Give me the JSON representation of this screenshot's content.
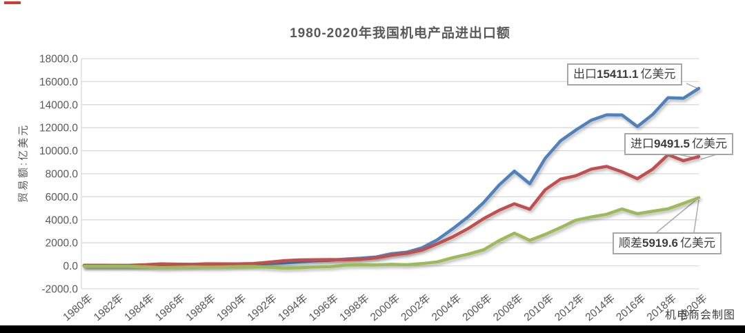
{
  "page": {
    "footer_credit": "机电商会制图"
  },
  "chart_data": {
    "type": "line",
    "title": "1980-2020年我国机电产品进出口额",
    "xlabel": "",
    "ylabel": "贸易额:亿美元",
    "ylim": [
      -2000,
      18000
    ],
    "ytick_step": 2000,
    "grid": true,
    "legend_position": "none",
    "yticks": [
      18000,
      16000,
      14000,
      12000,
      10000,
      8000,
      6000,
      4000,
      2000,
      0,
      -2000
    ],
    "ytick_labels": [
      "18000.0",
      "16000.0",
      "14000.0",
      "12000.0",
      "10000.0",
      "8000.0",
      "6000.0",
      "4000.0",
      "2000.0",
      "0.0",
      "-2000.0"
    ],
    "years": [
      1980,
      1981,
      1982,
      1983,
      1984,
      1985,
      1986,
      1987,
      1988,
      1989,
      1990,
      1991,
      1992,
      1993,
      1994,
      1995,
      1996,
      1997,
      1998,
      1999,
      2000,
      2001,
      2002,
      2003,
      2004,
      2005,
      2006,
      2007,
      2008,
      2009,
      2010,
      2011,
      2012,
      2013,
      2014,
      2015,
      2016,
      2017,
      2018,
      2019,
      2020
    ],
    "xtick_labels": [
      "1980年",
      "1982年",
      "1984年",
      "1986年",
      "1988年",
      "1990年",
      "1992年",
      "1994年",
      "1996年",
      "1998年",
      "2000年",
      "2002年",
      "2004年",
      "2006年",
      "2008年",
      "2010年",
      "2012年",
      "2014年",
      "2016年",
      "2018年",
      "2020年"
    ],
    "series": [
      {
        "name": "出口",
        "color": "#4F81BD",
        "values": [
          13.9,
          14.1,
          12.7,
          13.5,
          14.5,
          16.8,
          24.9,
          43.9,
          65.4,
          81.2,
          110.9,
          140.9,
          195.5,
          252.4,
          347.4,
          438.6,
          482.4,
          593.2,
          665.4,
          769.5,
          1053.1,
          1187.6,
          1570.8,
          2274.6,
          3234.0,
          4267.5,
          5494.4,
          7011.7,
          8229.3,
          7131.1,
          9334.3,
          10855.9,
          11794.4,
          12647.2,
          13110.9,
          13109.5,
          12096.0,
          13149.3,
          14605.5,
          14557.0,
          15411.1
        ]
      },
      {
        "name": "进口",
        "color": "#C0504D",
        "values": [
          56.5,
          49.2,
          42.7,
          53.5,
          96.2,
          167.9,
          149.8,
          133.4,
          181.8,
          175.2,
          168.5,
          195.6,
          311.6,
          450.3,
          514.7,
          526.9,
          547.7,
          527.0,
          566.9,
          694.5,
          919.4,
          1094.2,
          1370.5,
          1928.0,
          2524.3,
          3250.5,
          4100.2,
          4821.0,
          5386.6,
          4914.9,
          6603.1,
          7533.0,
          7824.8,
          8400.7,
          8632.3,
          8171.2,
          7571.4,
          8404.0,
          9656.3,
          9133.0,
          9491.5
        ]
      },
      {
        "name": "顺差",
        "color": "#9BBB59",
        "values": [
          -42.6,
          -35.1,
          -30.0,
          -40.0,
          -81.7,
          -151.1,
          -124.9,
          -89.5,
          -116.4,
          -94.0,
          -57.6,
          -54.7,
          -116.1,
          -197.9,
          -167.3,
          -88.3,
          -65.3,
          66.2,
          98.5,
          75.0,
          133.7,
          93.4,
          200.3,
          346.6,
          709.7,
          1017.0,
          1394.2,
          2190.7,
          2842.7,
          2216.2,
          2731.2,
          3322.9,
          3969.6,
          4246.5,
          4478.6,
          4938.3,
          4524.6,
          4745.3,
          4949.2,
          5424.0,
          5919.6
        ]
      }
    ],
    "annotations": [
      {
        "series": "出口",
        "prefix": "出口",
        "value": "15411.1",
        "unit": "亿美元"
      },
      {
        "series": "进口",
        "prefix": "进口",
        "value": "9491.5",
        "unit": "亿美元"
      },
      {
        "series": "顺差",
        "prefix": "顺差",
        "value": "5919.6",
        "unit": "亿美元"
      }
    ],
    "colors": {
      "grid": "#D9D9D9",
      "axis_text": "#595959",
      "title_text": "#595959",
      "annotation_border": "#A6A6A6",
      "annotation_text": "#404040",
      "leader_line": "#ABABAB"
    }
  }
}
